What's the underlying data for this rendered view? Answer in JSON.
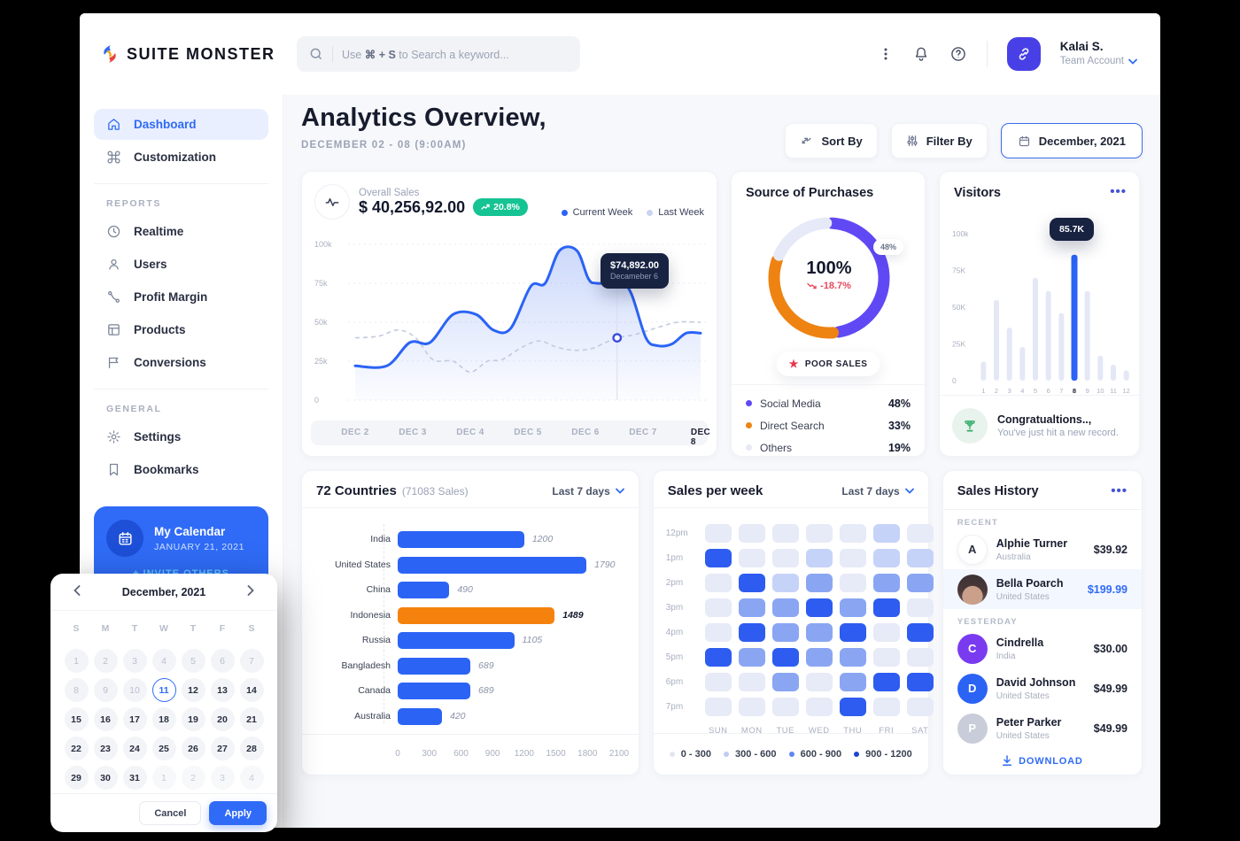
{
  "brand": {
    "name": "SUITE MONSTER"
  },
  "topbar": {
    "search": {
      "prefix": "Use",
      "shortcut": "⌘ + S",
      "suffix": "to Search a keyword..."
    },
    "icons": [
      "search-icon",
      "kebab-icon",
      "bell-icon",
      "help-icon",
      "link-icon",
      "chevron-down-icon"
    ],
    "user": {
      "name": "Kalai S.",
      "account": "Team Account"
    }
  },
  "sidebar": {
    "items_top": [
      {
        "label": "Dashboard",
        "icon": "home-icon",
        "active": true
      },
      {
        "label": "Customization",
        "icon": "command-icon",
        "active": false
      }
    ],
    "sections": [
      {
        "label": "REPORTS",
        "items": [
          {
            "label": "Realtime",
            "icon": "clock-icon"
          },
          {
            "label": "Users",
            "icon": "user-icon"
          },
          {
            "label": "Profit Margin",
            "icon": "route-icon"
          },
          {
            "label": "Products",
            "icon": "products-icon"
          },
          {
            "label": "Conversions",
            "icon": "flag-icon"
          }
        ]
      },
      {
        "label": "GENERAL",
        "items": [
          {
            "label": "Settings",
            "icon": "gear-icon"
          },
          {
            "label": "Bookmarks",
            "icon": "bookmark-icon"
          }
        ]
      }
    ],
    "calendar_card": {
      "title": "My Calendar",
      "date": "JANUARY 21, 2021",
      "cta": "+ INVITE OTHERS",
      "icon": "calendar-icon"
    }
  },
  "header": {
    "title": "Analytics Overview,",
    "subtitle": "DECEMBER 02 - 08 (9:00AM)",
    "sort_button": "Sort By",
    "filter_button": "Filter By",
    "date_button": "December, 2021"
  },
  "overall_sales": {
    "label": "Overall Sales",
    "value": "$ 40,256,92.00",
    "badge": "20.8%",
    "legend": [
      {
        "label": "Current Week",
        "color": "#2b63f5"
      },
      {
        "label": "Last Week",
        "color": "#c9d4f0"
      }
    ],
    "tooltip": {
      "value": "$74,892.00",
      "label": "Decameber 6"
    }
  },
  "source_of_purchases": {
    "title": "Source of Purchases",
    "center_value": "100%",
    "center_delta": "-18.7%",
    "float_badge": "48%",
    "status_badge": "POOR SALES",
    "legend": [
      {
        "label": "Social Media",
        "value": "48%",
        "color": "#6049f5"
      },
      {
        "label": "Direct Search",
        "value": "33%",
        "color": "#ee8312"
      },
      {
        "label": "Others",
        "value": "19%",
        "color": "#e6e9f7"
      }
    ]
  },
  "visitors": {
    "title": "Visitors",
    "tooltip": "85.7K",
    "footer_title": "Congratualtions..,",
    "footer_text": "You've just hit a new record.",
    "footer_icon": "trophy-icon"
  },
  "countries": {
    "title": "72 Countries",
    "subtitle": "(71083 Sales)",
    "dropdown": "Last 7 days"
  },
  "sales_per_week": {
    "title": "Sales per week",
    "dropdown": "Last 7 days",
    "legend": [
      {
        "label": "0 - 300",
        "color": "#e3e6f0"
      },
      {
        "label": "300 - 600",
        "color": "#bfcbf5"
      },
      {
        "label": "600 - 900",
        "color": "#5d86f2"
      },
      {
        "label": "900 - 1200",
        "color": "#1d44cf"
      }
    ]
  },
  "sales_history": {
    "title": "Sales History",
    "sections": [
      {
        "label": "RECENT",
        "rows": [
          {
            "name": "Alphie Turner",
            "country": "Australia",
            "amount": "$39.92",
            "avatar": "A",
            "avatar_style": "light",
            "highlight": false
          },
          {
            "name": "Bella Poarch",
            "country": "United States",
            "amount": "$199.99",
            "avatar": "",
            "avatar_style": "photo",
            "highlight": true
          }
        ]
      },
      {
        "label": "YESTERDAY",
        "rows": [
          {
            "name": "Cindrella",
            "country": "India",
            "amount": "$30.00",
            "avatar": "C",
            "avatar_style": "purple",
            "highlight": false
          },
          {
            "name": "David Johnson",
            "country": "United States",
            "amount": "$49.99",
            "avatar": "D",
            "avatar_style": "blue",
            "highlight": false
          },
          {
            "name": "Peter Parker",
            "country": "United States",
            "amount": "$49.99",
            "avatar": "P",
            "avatar_style": "grey",
            "highlight": false
          }
        ]
      }
    ],
    "download": "DOWNLOAD"
  },
  "calendar_popup": {
    "month": "December, 2021",
    "day_headers": [
      "S",
      "M",
      "T",
      "W",
      "T",
      "F",
      "S"
    ],
    "days": [
      {
        "d": "1",
        "s": "m"
      },
      {
        "d": "2",
        "s": "m"
      },
      {
        "d": "3",
        "s": "m"
      },
      {
        "d": "4",
        "s": "m"
      },
      {
        "d": "5",
        "s": "m"
      },
      {
        "d": "6",
        "s": "m"
      },
      {
        "d": "7",
        "s": "m"
      },
      {
        "d": "8",
        "s": "m"
      },
      {
        "d": "9",
        "s": "m"
      },
      {
        "d": "10",
        "s": "m"
      },
      {
        "d": "11",
        "s": "sel"
      },
      {
        "d": "12",
        "s": "n"
      },
      {
        "d": "13",
        "s": "n"
      },
      {
        "d": "14",
        "s": "n"
      },
      {
        "d": "15",
        "s": "n"
      },
      {
        "d": "16",
        "s": "n"
      },
      {
        "d": "17",
        "s": "n"
      },
      {
        "d": "18",
        "s": "n"
      },
      {
        "d": "19",
        "s": "n"
      },
      {
        "d": "20",
        "s": "n"
      },
      {
        "d": "21",
        "s": "n"
      },
      {
        "d": "22",
        "s": "n"
      },
      {
        "d": "23",
        "s": "n"
      },
      {
        "d": "24",
        "s": "n"
      },
      {
        "d": "25",
        "s": "n"
      },
      {
        "d": "26",
        "s": "n"
      },
      {
        "d": "27",
        "s": "n"
      },
      {
        "d": "28",
        "s": "n"
      },
      {
        "d": "29",
        "s": "n"
      },
      {
        "d": "30",
        "s": "n"
      },
      {
        "d": "31",
        "s": "n"
      },
      {
        "d": "1",
        "s": "x"
      },
      {
        "d": "2",
        "s": "x"
      },
      {
        "d": "3",
        "s": "x"
      },
      {
        "d": "4",
        "s": "x"
      }
    ],
    "cancel": "Cancel",
    "apply": "Apply"
  },
  "chart_data": [
    {
      "id": "overall_sales_line",
      "type": "line",
      "title": "Overall Sales",
      "x_labels": [
        "DEC 2",
        "DEC 3",
        "DEC 4",
        "DEC 5",
        "DEC 6",
        "DEC 7",
        "DEC 8"
      ],
      "active_x_label": "DEC 8",
      "y_ticks": [
        "100k",
        "75k",
        "50k",
        "25k",
        "0"
      ],
      "ylim": [
        0,
        100
      ],
      "grid": true,
      "series": [
        {
          "name": "Current Week",
          "color": "#2b63f5",
          "style": "solid",
          "fill": true,
          "points": [
            [
              0,
              22
            ],
            [
              0.55,
              22
            ],
            [
              0.95,
              37
            ],
            [
              1.3,
              37
            ],
            [
              1.7,
              55
            ],
            [
              2.1,
              55
            ],
            [
              2.4,
              45
            ],
            [
              2.7,
              46
            ],
            [
              3.05,
              73
            ],
            [
              3.3,
              75
            ],
            [
              3.55,
              96
            ],
            [
              3.85,
              96
            ],
            [
              4.05,
              78
            ],
            [
              4.2,
              75
            ],
            [
              4.62,
              75
            ],
            [
              4.8,
              68
            ],
            [
              5.05,
              40
            ],
            [
              5.25,
              35
            ],
            [
              5.5,
              36
            ],
            [
              5.75,
              43
            ],
            [
              6,
              43
            ]
          ]
        },
        {
          "name": "Last Week",
          "color": "#c3cadd",
          "style": "dashed",
          "fill": false,
          "points": [
            [
              0,
              40
            ],
            [
              0.4,
              41
            ],
            [
              0.75,
              45
            ],
            [
              1.05,
              40
            ],
            [
              1.35,
              26
            ],
            [
              1.7,
              25
            ],
            [
              2.0,
              18
            ],
            [
              2.3,
              25
            ],
            [
              2.55,
              26
            ],
            [
              2.9,
              34
            ],
            [
              3.2,
              38
            ],
            [
              3.5,
              34
            ],
            [
              3.8,
              32
            ],
            [
              4.1,
              33
            ],
            [
              4.35,
              37
            ],
            [
              4.55,
              40
            ],
            [
              4.85,
              42
            ],
            [
              5.2,
              46
            ],
            [
              5.6,
              50
            ],
            [
              6,
              50
            ]
          ]
        }
      ],
      "marker_x": 4.55,
      "marker_current_y": 75,
      "marker_last_y": 40,
      "tooltip": {
        "value": "$74,892.00",
        "label": "Decameber 6"
      }
    },
    {
      "id": "purchases_donut",
      "type": "pie",
      "title": "Source of Purchases",
      "segments": [
        {
          "label": "Social Media",
          "value": 48,
          "color": "#6049f5"
        },
        {
          "label": "Direct Search",
          "value": 33,
          "color": "#ee8312"
        },
        {
          "label": "Others",
          "value": 19,
          "color": "#e6e9f7"
        }
      ],
      "center_value": "100%",
      "center_delta": "-18.7%"
    },
    {
      "id": "visitors_bars",
      "type": "bar",
      "title": "Visitors",
      "categories": [
        "1",
        "2",
        "3",
        "4",
        "5",
        "6",
        "7",
        "8",
        "9",
        "10",
        "11",
        "12"
      ],
      "values": [
        13,
        55,
        36,
        23,
        70,
        61,
        46,
        85.7,
        61,
        17,
        11,
        7
      ],
      "unit": "K",
      "highlight_index": 7,
      "highlight_color": "#2b63f5",
      "bar_color": "#e4e8f6",
      "y_ticks": [
        "100k",
        "75K",
        "50K",
        "25K",
        "0"
      ],
      "ylim": [
        0,
        100
      ],
      "tooltip": "85.7K"
    },
    {
      "id": "countries_bars",
      "type": "bar",
      "orientation": "horizontal",
      "title": "72 Countries (71083 Sales)",
      "categories": [
        "India",
        "United States",
        "China",
        "Indonesia",
        "Russia",
        "Bangladesh",
        "Canada",
        "Australia"
      ],
      "values": [
        1200,
        1790,
        490,
        1489,
        1105,
        689,
        689,
        420
      ],
      "highlight_index": 3,
      "highlight_color": "#f5820d",
      "bar_color": "#2b63f5",
      "x_ticks": [
        0,
        300,
        600,
        900,
        1200,
        1500,
        1800,
        2100
      ],
      "xlim": [
        0,
        2100
      ]
    },
    {
      "id": "week_heatmap",
      "type": "heatmap",
      "title": "Sales per week",
      "rows": [
        "12pm",
        "1pm",
        "2pm",
        "3pm",
        "4pm",
        "5pm",
        "6pm",
        "7pm"
      ],
      "cols": [
        "SUN",
        "MON",
        "TUE",
        "WED",
        "THU",
        "FRI",
        "SAT"
      ],
      "levels": [
        [
          0,
          0,
          0,
          0,
          0,
          1,
          0
        ],
        [
          3,
          0,
          0,
          1,
          0,
          1,
          1
        ],
        [
          0,
          3,
          1,
          2,
          0,
          2,
          2
        ],
        [
          0,
          2,
          2,
          3,
          2,
          3,
          0
        ],
        [
          0,
          3,
          2,
          2,
          3,
          0,
          3
        ],
        [
          3,
          2,
          3,
          2,
          2,
          0,
          0
        ],
        [
          0,
          0,
          2,
          0,
          2,
          3,
          3
        ],
        [
          0,
          0,
          0,
          0,
          3,
          0,
          0
        ]
      ],
      "level_colors": [
        "#e7eaf7",
        "#c6d3f9",
        "#8aa6f3",
        "#2e5cf0"
      ],
      "level_ranges": [
        "0 - 300",
        "300 - 600",
        "600 - 900",
        "900 - 1200"
      ]
    }
  ]
}
